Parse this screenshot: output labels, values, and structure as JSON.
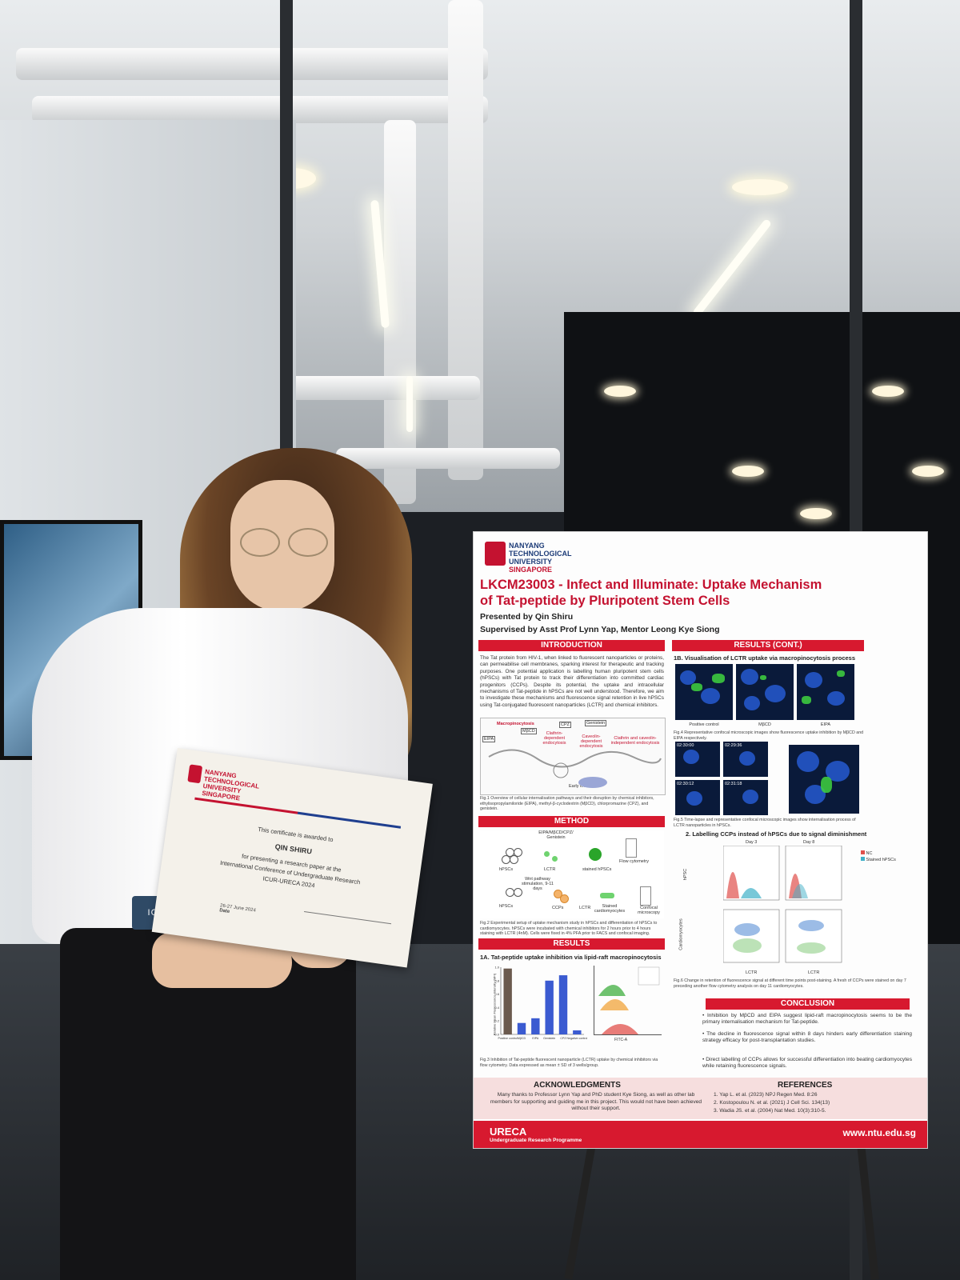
{
  "certificate": {
    "university": [
      "NANYANG",
      "TECHNOLOGICAL",
      "UNIVERSITY",
      "SINGAPORE"
    ],
    "awarded_to": "This certificate is awarded to",
    "name": "QIN SHIRU",
    "for_line": "for presenting a research paper at the",
    "conference": "International Conference of Undergraduate Research",
    "acronym": "ICUR-URECA 2024",
    "date": "26-27 June 2024",
    "date_label": "Date"
  },
  "lanyard": "ICUR",
  "poster": {
    "university": [
      "NANYANG",
      "TECHNOLOGICAL",
      "UNIVERSITY"
    ],
    "country": "SINGAPORE",
    "title_line1": "LKCM23003 - Infect and Illuminate: Uptake Mechanism",
    "title_line2": "of Tat-peptide by Pluripotent Stem Cells",
    "presented_by": "Presented by Qin Shiru",
    "supervised_by": "Supervised by Asst Prof Lynn Yap, Mentor Leong Kye Siong",
    "sections": {
      "introduction": "INTRODUCTION",
      "results_cont": "RESULTS (CONT.)",
      "method": "METHOD",
      "results": "RESULTS",
      "conclusion": "CONCLUSION",
      "acknowledgments": "ACKNOWLEDGMENTS",
      "references": "REFERENCES"
    },
    "intro_text": "The Tat protein from HIV-1, when linked to fluorescent nanoparticles or proteins, can permeabilise cell membranes, sparking interest for therapeutic and tracking purposes. One potential application is labelling human pluripotent stem cells (hPSCs) with Tat protein to track their differentiation into committed cardiac progenitors (CCPs). Despite its potential, the uptake and intracellular mechanisms of Tat-peptide in hPSCs are not well understood. Therefore, we aim to investigate these mechanisms and fluorescence signal retention in live hPSCs using Tat-conjugated fluorescent nanoparticles (LCTR) and chemical inhibitors.",
    "fig1_caption": "Fig.1 Overview of cellular internalisation pathways and their disruption by chemical inhibitors, ethylisopropylamiloride (EIPA), methyl-β-cyclodextrin (MβCD), chlorpromazine (CPZ), and genistein.",
    "fig1_labels": [
      "Macropinocytosis",
      "Clathrin-dependent endocytosis",
      "Caveolin-dependent endocytosis",
      "Clathrin and caveolin-independent endocytosis",
      "Early endosome",
      "EIPA",
      "MβCD",
      "CPZ",
      "Genistein"
    ],
    "fig2_caption": "Fig.2 Experimental setup of uptake mechanism study in hPSCs and differentiation of hPSCs to cardiomyocytes. hPSCs were incubated with chemical inhibitors for 2 hours prior to 4 hours staining with LCTR (4nM). Cells were fixed in 4% PFA prior to FACS and confocal imaging.",
    "fig2_labels": [
      "EIPA/MβCD/CPZ/ Genistein",
      "hPSCs",
      "LCTR",
      "stained hPSCs",
      "Flow cytometry",
      "Wnt pathway stimulation, 9-11 days",
      "CCPs",
      "Stained cardiomyocytes",
      "Confocal microscopy"
    ],
    "res1a_title": "1A. Tat-peptide uptake inhibition via lipid-raft macropinocytosis",
    "fig3_caption": "Fig.3 Inhibition of Tat-peptide fluorescent nanoparticle (LCTR) uptake by chemical inhibitors via flow cytometry. Data expressed as mean ± SD of 3 wells/group.",
    "fig3_ylabel": "Relative Mean Fluorescence Intensity (MFI)",
    "fig3_xlabel": "FITC-A",
    "res1b_title": "1B. Visualisation of LCTR uptake via macropinocytosis process",
    "fig4_labels": [
      "Positive control",
      "MβCD",
      "EIPA"
    ],
    "fig4_caption": "Fig.4 Representative confocal microscopic images show fluorescence uptake inhibition by MβCD and EIPA respectively.",
    "fig5_times": [
      "02:30:00",
      "02:29:36",
      "02:30:12",
      "02:31:18"
    ],
    "fig5_caption": "Fig.5 Time-lapse and representative confocal microscopic images show internalisation process of LCTR nanoparticles in hPSCs.",
    "res2_title": "2. Labelling CCPs instead of hPSCs due to signal diminishment",
    "fig6_days": [
      "Day 3",
      "Day 8"
    ],
    "fig6_legend": [
      "NC",
      "Stained hPSCs"
    ],
    "fig6_rows": [
      "hPSC",
      "Cardiomyocytes"
    ],
    "fig6_xlabel": "LCTR",
    "fig6_caption": "Fig.6 Change in retention of fluorescence signal at different time points post-staining. A fresh of CCPs were stained on day 7 preceding another flow cytometry analysis on day 11 cardiomyocytes.",
    "conclusion": [
      "Inhibition by MβCD and EIPA suggest lipid-raft macropinocytosis seems to be the primary internalisation mechanism for Tat-peptide.",
      "The decline in fluorescence signal within 8 days hinders early differentiation staining strategy efficacy for post-transplantation studies.",
      "Direct labelling of CCPs allows for successful differentiation into beating cardiomyocytes while retaining fluorescence signals."
    ],
    "acknowledgments": "Many thanks to Professor Lynn Yap and PhD student Kye Siong, as well as other lab members for supporting and guiding me in this project. This would not have been achieved without their support.",
    "references": [
      "1. Yap L. et al. (2023) NPJ Regen Med. 8:26",
      "2. Kostopoulou N. et al. (2021) J Cell Sci. 134(13)",
      "3. Wadia JS. et al. (2004) Nat Med. 10(3):310-5."
    ],
    "footer_brand": "URECA",
    "footer_sub": "Undergraduate Research Programme",
    "footer_url": "www.ntu.edu.sg"
  },
  "chart_data": {
    "type": "bar",
    "title": "",
    "categories": [
      "Positive control",
      "MβCD",
      "EIPA",
      "Genistein",
      "CPZ",
      "Negative control"
    ],
    "values": [
      0.98,
      0.17,
      0.24,
      0.8,
      0.88,
      0.06
    ],
    "ylabel": "Relative Mean Fluorescence Intensity (MFI)",
    "ylim": [
      0,
      1.0
    ],
    "yticks": [
      "0.0",
      "0.2",
      "0.4",
      "0.6",
      "0.8",
      "1.0"
    ],
    "colors": [
      "#6b5a4e",
      "#3b5bd1"
    ]
  }
}
